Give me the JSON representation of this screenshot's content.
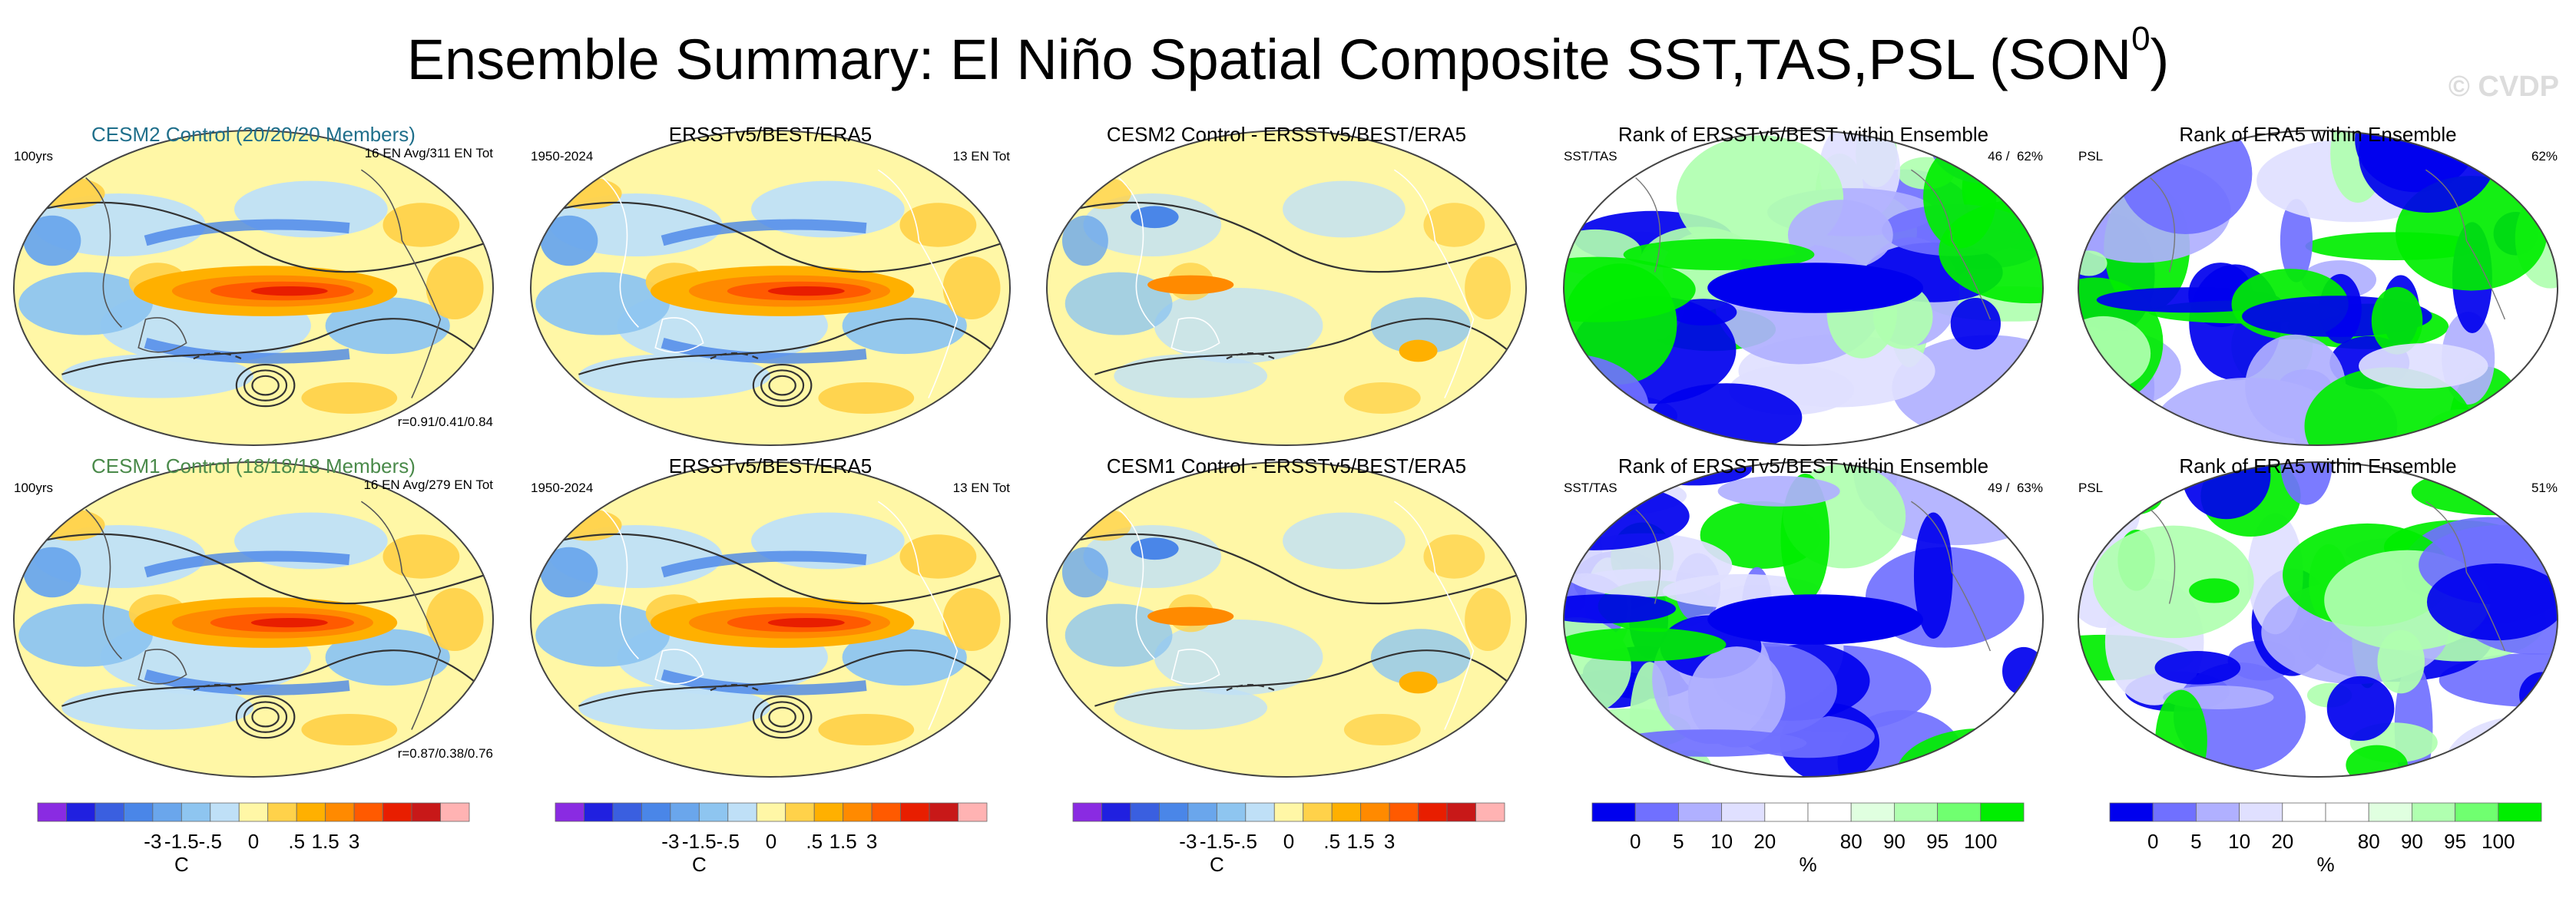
{
  "title": "Ensemble Summary: El Niño Spatial Composite SST,TAS,PSL (SON",
  "title_sup": "0",
  "title_close": ")",
  "watermark": "© CVDP",
  "rows": [
    {
      "model_title": "CESM2 Control (20/20/20 Members)",
      "model_title_color": "#1f6f8b",
      "period": "100yrs",
      "count": "16 EN Avg/311 EN Tot",
      "corr": "r=0.91/0.41/0.84",
      "obs_title": "ERSSTv5/BEST/ERA5",
      "obs_period": "1950-2024",
      "obs_count": "13 EN Tot",
      "diff_title": "CESM2 Control - ERSSTv5/BEST/ERA5",
      "rank1_title": "Rank of ERSSTv5/BEST within Ensemble",
      "rank1_label": "SST/TAS",
      "rank1_pct": "46 /  62%",
      "rank2_title": "Rank of ERA5 within Ensemble",
      "rank2_label": "PSL",
      "rank2_pct": "62%"
    },
    {
      "model_title": "CESM1 Control (18/18/18 Members)",
      "model_title_color": "#4a8a4a",
      "period": "100yrs",
      "count": "16 EN Avg/279 EN Tot",
      "corr": "r=0.87/0.38/0.76",
      "obs_title": "ERSSTv5/BEST/ERA5",
      "obs_period": "1950-2024",
      "obs_count": "13 EN Tot",
      "diff_title": "CESM1 Control - ERSSTv5/BEST/ERA5",
      "rank1_title": "Rank of ERSSTv5/BEST within Ensemble",
      "rank1_label": "SST/TAS",
      "rank1_pct": "49 /  63%",
      "rank2_title": "Rank of ERA5 within Ensemble",
      "rank2_label": "PSL",
      "rank2_pct": "51%"
    }
  ],
  "colorbars": {
    "temp": {
      "colors": [
        "#8a2be2",
        "#2020e0",
        "#3a5fe0",
        "#4a86e8",
        "#6aa6ec",
        "#8ec5f0",
        "#bfe0f7",
        "#fff7a6",
        "#ffd24a",
        "#ffb000",
        "#ff8a00",
        "#ff5a00",
        "#e81e00",
        "#c81818",
        "#ffb3b3"
      ],
      "tick_labels": [
        "-3",
        "-1.5",
        "-.5",
        "0",
        ".5",
        "1.5",
        "3"
      ],
      "unit": "C"
    },
    "rank": {
      "colors": [
        "#0000ee",
        "#7070ff",
        "#b0b0ff",
        "#e0e0ff",
        "#ffffff",
        "#ffffff",
        "#e0ffe0",
        "#b0ffb0",
        "#70ff70",
        "#00ee00"
      ],
      "tick_labels": [
        "0",
        "5",
        "10",
        "20",
        "80",
        "90",
        "95",
        "100"
      ],
      "unit": "%"
    }
  },
  "colors": {
    "positive_warm": "#ff8a00",
    "negative_cool": "#4a86e8",
    "rank_low": "#0000ee",
    "rank_high": "#00ee00"
  },
  "chart_data": {
    "type": "map-panel-grid",
    "title": "Ensemble Summary: El Niño Spatial Composite SST,TAS,PSL (SON0)",
    "panels_per_row": 5,
    "rows": 2,
    "temperature_scale_C": [
      -3,
      -1.5,
      -0.5,
      0,
      0.5,
      1.5,
      3
    ],
    "rank_scale_percent": [
      0,
      5,
      10,
      20,
      80,
      90,
      95,
      100
    ]
  }
}
